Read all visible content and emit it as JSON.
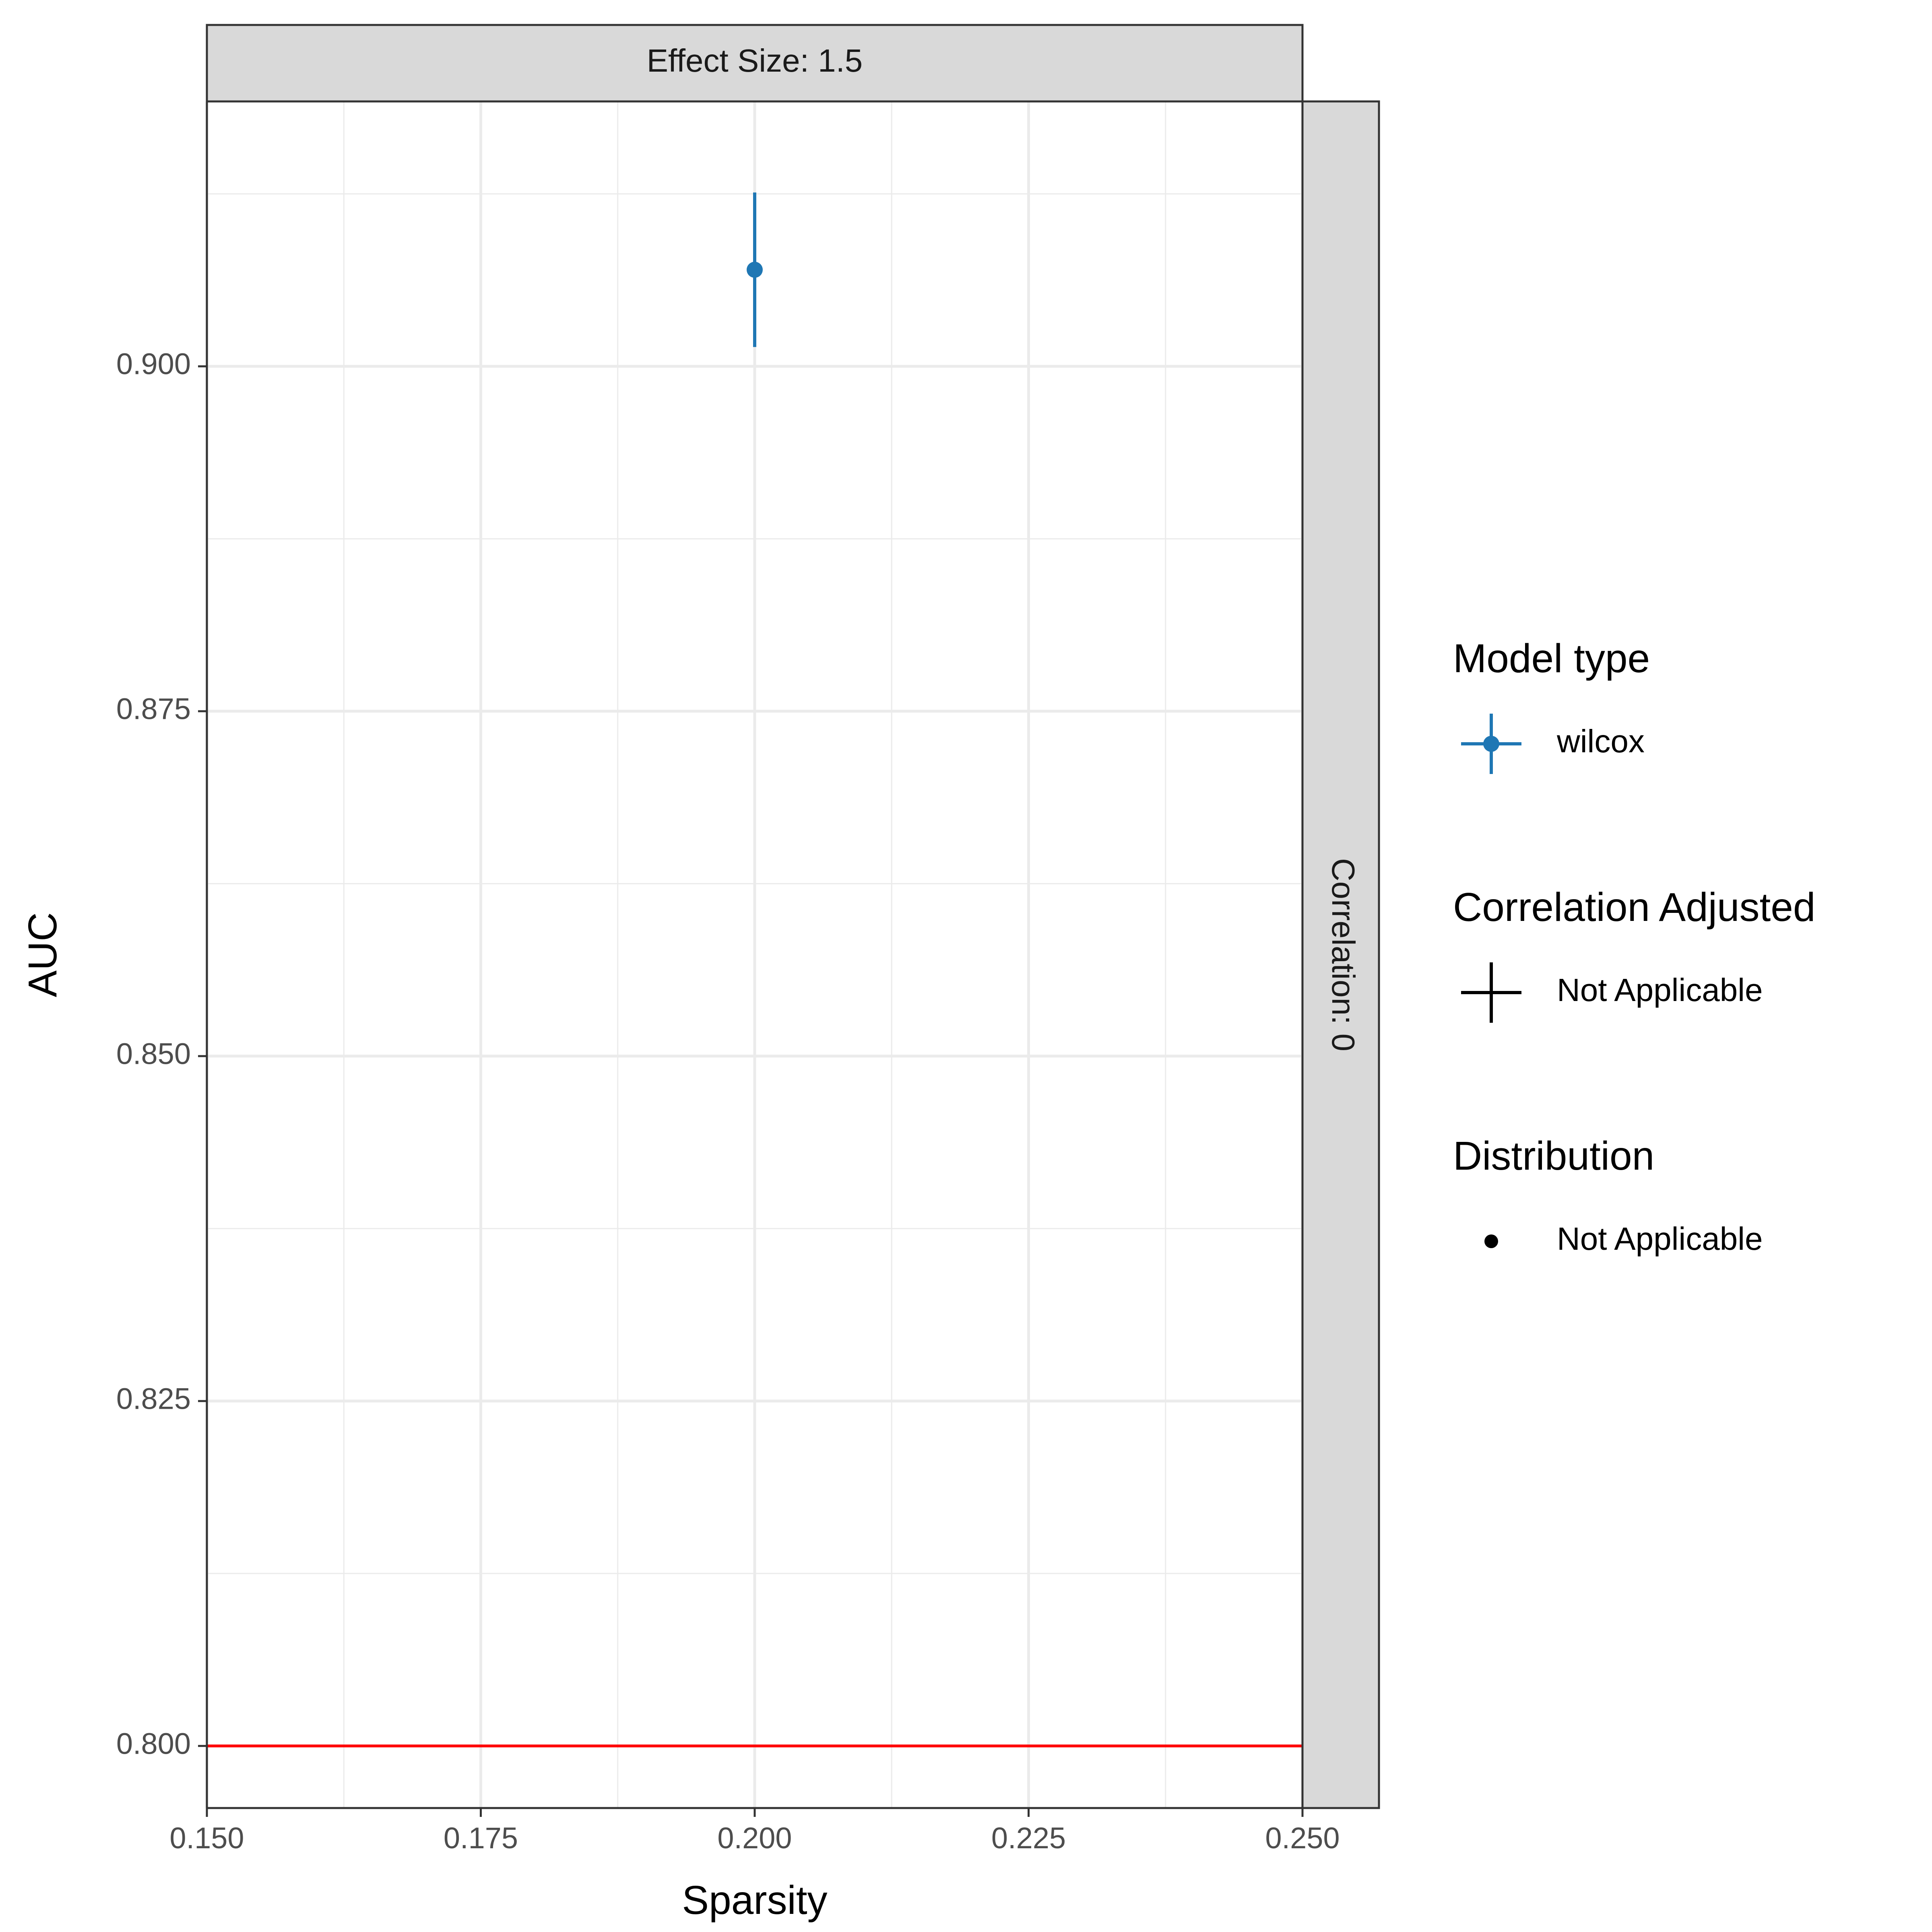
{
  "chart_data": {
    "type": "scatter",
    "facet": {
      "col_strip": "Effect Size: 1.5",
      "row_strip": "Correlation: 0"
    },
    "xlabel": "Sparsity",
    "ylabel": "AUC",
    "xlim": [
      0.15,
      0.25
    ],
    "ylim": [
      0.7955,
      0.9192
    ],
    "x_ticks": [
      0.15,
      0.175,
      0.2,
      0.225,
      0.25
    ],
    "x_tick_labels": [
      "0.150",
      "0.175",
      "0.200",
      "0.225",
      "0.250"
    ],
    "y_ticks": [
      0.8,
      0.825,
      0.85,
      0.875,
      0.9
    ],
    "y_tick_labels": [
      "0.800",
      "0.825",
      "0.850",
      "0.875",
      "0.900"
    ],
    "grid": true,
    "series": [
      {
        "name": "wilcox",
        "color": "#1f77b4",
        "points": [
          {
            "x": 0.2,
            "y": 0.907,
            "ymin": 0.9014,
            "ymax": 0.9126
          }
        ]
      }
    ],
    "reference_line": {
      "y": 0.8,
      "color": "#ff0000"
    },
    "legend": {
      "position": "right",
      "groups": [
        {
          "title": "Model type",
          "label": "wilcox",
          "key": "pointrange",
          "color": "#1f77b4"
        },
        {
          "title": "Correlation Adjusted",
          "label": "Not Applicable",
          "key": "cross",
          "color": "#000000"
        },
        {
          "title": "Distribution",
          "label": "Not Applicable",
          "key": "point",
          "color": "#000000"
        }
      ]
    }
  }
}
